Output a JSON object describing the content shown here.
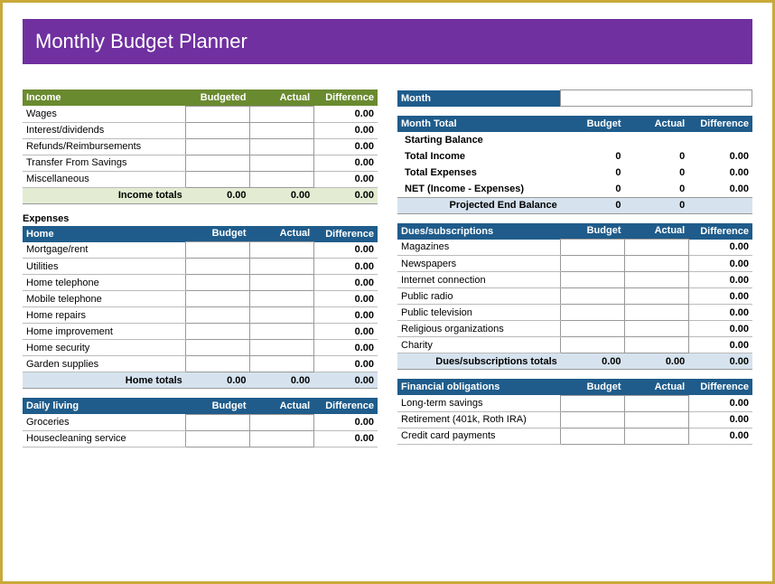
{
  "title": "Monthly Budget Planner",
  "colors": {
    "titleBg": "#7030a0",
    "incomeHdr": "#6a8a2f",
    "blueHdr": "#1f5c8b",
    "incomeTotalsBg": "#e3ecd2",
    "blueTotalsBg": "#d6e3ef",
    "border": "#c9a93a"
  },
  "cols": {
    "budget": "Budget",
    "budgeted": "Budgeted",
    "actual": "Actual",
    "difference": "Difference"
  },
  "income": {
    "header": "Income",
    "rows": [
      {
        "label": "Wages",
        "diff": "0.00"
      },
      {
        "label": "Interest/dividends",
        "diff": "0.00"
      },
      {
        "label": "Refunds/Reimbursements",
        "diff": "0.00"
      },
      {
        "label": "Transfer From Savings",
        "diff": "0.00"
      },
      {
        "label": "Miscellaneous",
        "diff": "0.00"
      }
    ],
    "totalsLabel": "Income totals",
    "totals": {
      "budget": "0.00",
      "actual": "0.00",
      "diff": "0.00"
    }
  },
  "expensesLabel": "Expenses",
  "home": {
    "header": "Home",
    "rows": [
      {
        "label": "Mortgage/rent",
        "diff": "0.00"
      },
      {
        "label": "Utilities",
        "diff": "0.00"
      },
      {
        "label": "Home telephone",
        "diff": "0.00"
      },
      {
        "label": "Mobile telephone",
        "diff": "0.00"
      },
      {
        "label": "Home repairs",
        "diff": "0.00"
      },
      {
        "label": "Home improvement",
        "diff": "0.00"
      },
      {
        "label": "Home security",
        "diff": "0.00"
      },
      {
        "label": "Garden supplies",
        "diff": "0.00"
      }
    ],
    "totalsLabel": "Home totals",
    "totals": {
      "budget": "0.00",
      "actual": "0.00",
      "diff": "0.00"
    }
  },
  "daily": {
    "header": "Daily living",
    "rows": [
      {
        "label": "Groceries",
        "diff": "0.00"
      },
      {
        "label": "Housecleaning service",
        "diff": "0.00"
      }
    ]
  },
  "monthLabel": "Month",
  "monthTotal": {
    "header": "Month Total",
    "rows": [
      {
        "label": "Starting Balance",
        "budget": "",
        "actual": "",
        "diff": ""
      },
      {
        "label": "Total Income",
        "budget": "0",
        "actual": "0",
        "diff": "0.00"
      },
      {
        "label": "Total Expenses",
        "budget": "0",
        "actual": "0",
        "diff": "0.00"
      },
      {
        "label": "NET (Income - Expenses)",
        "budget": "0",
        "actual": "0",
        "diff": "0.00"
      }
    ],
    "projLabel": "Projected End Balance",
    "projVals": {
      "budget": "0",
      "actual": "0",
      "diff": ""
    }
  },
  "dues": {
    "header": "Dues/subscriptions",
    "rows": [
      {
        "label": "Magazines",
        "diff": "0.00"
      },
      {
        "label": "Newspapers",
        "diff": "0.00"
      },
      {
        "label": "Internet connection",
        "diff": "0.00"
      },
      {
        "label": "Public radio",
        "diff": "0.00"
      },
      {
        "label": "Public television",
        "diff": "0.00"
      },
      {
        "label": "Religious organizations",
        "diff": "0.00"
      },
      {
        "label": "Charity",
        "diff": "0.00"
      }
    ],
    "totalsLabel": "Dues/subscriptions totals",
    "totals": {
      "budget": "0.00",
      "actual": "0.00",
      "diff": "0.00"
    }
  },
  "financial": {
    "header": "Financial obligations",
    "rows": [
      {
        "label": "Long-term savings",
        "diff": "0.00"
      },
      {
        "label": "Retirement (401k, Roth IRA)",
        "diff": "0.00"
      },
      {
        "label": "Credit card payments",
        "diff": "0.00"
      }
    ]
  }
}
